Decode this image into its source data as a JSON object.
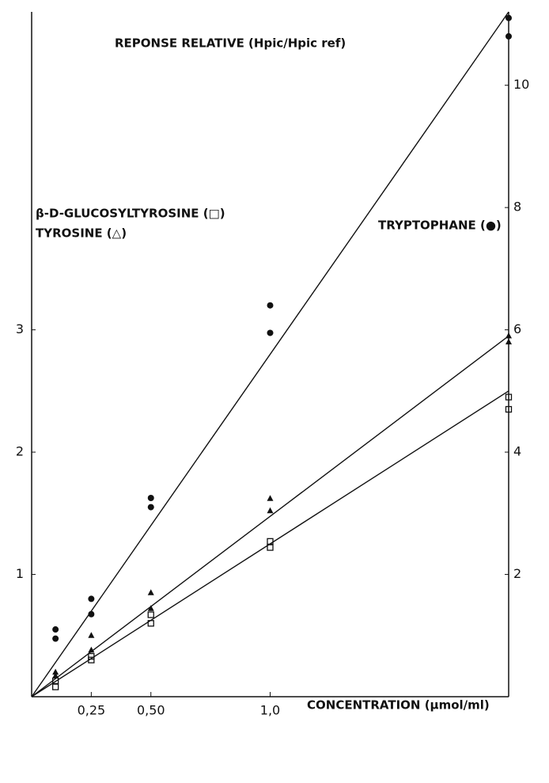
{
  "chart_data": {
    "type": "scatter",
    "title": "REPONSE RELATIVE (Hpic/Hpic ref)",
    "x_label": "CONCENTRATION (µmol/ml)",
    "xlim": [
      0,
      2.0
    ],
    "xticks": [
      {
        "value": 0.25,
        "label": "0,25"
      },
      {
        "value": 0.5,
        "label": "0,50"
      },
      {
        "value": 1.0,
        "label": "1,0"
      }
    ],
    "ylim": [
      0,
      5.6
    ],
    "yticks": [
      1,
      2,
      3
    ],
    "y2lim": [
      0,
      11.2
    ],
    "y2ticks": [
      2,
      4,
      6,
      8,
      10
    ],
    "series": [
      {
        "name": "β-D-GLUCOSYLTYROSINE (□)",
        "marker": "square",
        "color": "#111111",
        "x": [
          0.1,
          0.1,
          0.25,
          0.25,
          0.5,
          0.5,
          1.0,
          1.0,
          2.0,
          2.0
        ],
        "values": [
          0.13,
          0.08,
          0.33,
          0.3,
          0.67,
          0.6,
          1.27,
          1.22,
          2.45,
          2.35
        ],
        "fit_x": [
          0,
          2.0
        ],
        "fit": [
          0,
          2.5
        ]
      },
      {
        "name": "TYROSINE (△)",
        "marker": "triangle",
        "color": "#111111",
        "x": [
          0.1,
          0.1,
          0.25,
          0.25,
          0.5,
          0.5,
          1.0,
          1.0,
          2.0,
          2.0
        ],
        "values": [
          0.2,
          0.17,
          0.5,
          0.38,
          0.85,
          0.72,
          1.62,
          1.52,
          2.95,
          2.9
        ],
        "fit_x": [
          0,
          2.0
        ],
        "fit": [
          0,
          2.95
        ]
      },
      {
        "name": "TRYPTOPHANE (●)",
        "marker": "circle",
        "color": "#111111",
        "axis": "y2",
        "x": [
          0.1,
          0.1,
          0.25,
          0.25,
          0.5,
          0.5,
          1.0,
          1.0,
          2.0,
          2.0
        ],
        "values": [
          1.1,
          0.95,
          1.6,
          1.35,
          3.25,
          3.1,
          6.4,
          5.95,
          11.1,
          10.8
        ],
        "fit_x": [
          0,
          2.0
        ],
        "fit": [
          0,
          11.2
        ]
      }
    ]
  }
}
